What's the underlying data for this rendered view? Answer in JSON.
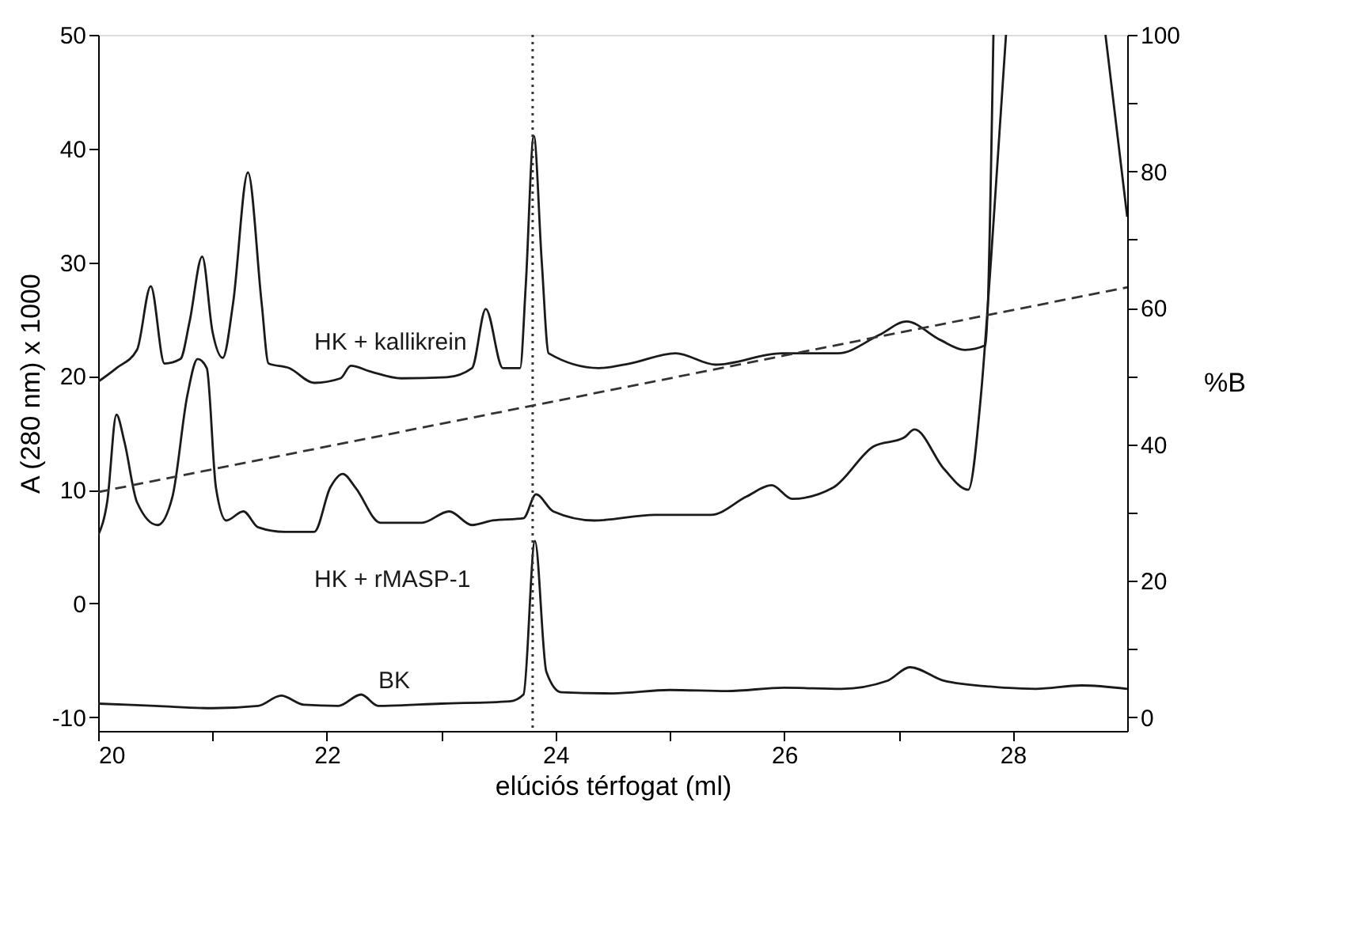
{
  "chart_data": {
    "type": "line",
    "xlabel": "elúciós térfogat (ml)",
    "ylabel": "A (280 nm) x 1000",
    "y2label": "%B",
    "xlim": [
      20,
      29
    ],
    "xticks": [
      20,
      {
        "value": 21,
        "label": null
      },
      22,
      {
        "value": 23,
        "label": null
      },
      24,
      {
        "value": 25,
        "label": null
      },
      26,
      {
        "value": 27,
        "label": null
      },
      28
    ],
    "ylim": [
      -11.2,
      50
    ],
    "yticks": [
      -10,
      0,
      10,
      20,
      30,
      40,
      50
    ],
    "y2lim": [
      -2,
      100
    ],
    "y2ticks": [
      0,
      {
        "value": 10,
        "label": null
      },
      20,
      {
        "value": 30,
        "label": null
      },
      40,
      {
        "value": 50,
        "label": null
      },
      60,
      {
        "value": 70,
        "label": null
      },
      80,
      {
        "value": 90,
        "label": null
      },
      100
    ],
    "grid": false,
    "legend": false,
    "marker": "none",
    "line_style": "solid",
    "ref_lines": [
      {
        "axis": "x",
        "value": 23.8,
        "line_style": "dotted",
        "color": "#333333"
      }
    ],
    "series": [
      {
        "name": "HK + kallikrein",
        "color": "#1a1a1a",
        "x": [
          20.0,
          20.16,
          20.34,
          20.46,
          20.58,
          20.72,
          20.8,
          20.91,
          21.0,
          21.09,
          21.18,
          21.31,
          21.43,
          21.49,
          21.67,
          21.89,
          22.12,
          22.21,
          22.38,
          22.65,
          23.05,
          23.27,
          23.39,
          23.54,
          23.69,
          23.74,
          23.81,
          23.88,
          23.94,
          24.38,
          24.65,
          25.05,
          25.4,
          25.98,
          26.47,
          26.83,
          27.07,
          27.36,
          27.58,
          27.76,
          27.83,
          28.3,
          28.81,
          29.0
        ],
        "values": [
          19.5,
          20.7,
          22.3,
          27.9,
          21.1,
          21.5,
          24.8,
          30.5,
          23.9,
          21.6,
          26.4,
          37.9,
          26.4,
          21.1,
          20.7,
          19.4,
          19.8,
          20.9,
          20.4,
          19.8,
          19.9,
          20.7,
          25.9,
          20.7,
          20.7,
          28,
          41.1,
          30,
          22.0,
          20.7,
          21.1,
          22.0,
          21.0,
          22.0,
          22.0,
          23.6,
          24.8,
          23.2,
          22.3,
          22.7,
          50,
          null,
          50,
          34
        ]
      },
      {
        "name": "HK + rMASP-1",
        "color": "#1a1a1a",
        "x": [
          20.0,
          20.08,
          20.16,
          20.23,
          20.34,
          20.52,
          20.65,
          20.78,
          20.87,
          20.95,
          21.03,
          21.12,
          21.27,
          21.4,
          21.63,
          21.89,
          22.03,
          22.14,
          22.25,
          22.47,
          22.83,
          23.07,
          23.27,
          23.45,
          23.72,
          23.83,
          23.98,
          24.34,
          24.87,
          25.36,
          25.67,
          25.89,
          26.07,
          26.43,
          26.78,
          27.05,
          27.14,
          27.4,
          27.61,
          27.72,
          27.81,
          27.94
        ],
        "values": [
          6.0,
          9.0,
          16.6,
          14.2,
          8.9,
          6.9,
          9.4,
          18.3,
          21.5,
          20.7,
          10.2,
          7.3,
          8.1,
          6.7,
          6.3,
          6.3,
          10.2,
          11.4,
          10.2,
          7.1,
          7.1,
          8.1,
          6.9,
          7.3,
          7.5,
          9.6,
          8.1,
          7.3,
          7.8,
          7.8,
          9.4,
          10.4,
          9.2,
          10.2,
          13.8,
          14.6,
          15.3,
          11.8,
          10.0,
          18.2,
          30.4,
          50
        ]
      },
      {
        "name": "BK",
        "color": "#1a1a1a",
        "x": [
          20.0,
          20.5,
          21.0,
          21.4,
          21.6,
          21.8,
          22.1,
          22.3,
          22.45,
          23.0,
          23.6,
          23.72,
          23.82,
          23.92,
          24.05,
          24.5,
          25.0,
          25.5,
          26.0,
          26.5,
          26.9,
          27.1,
          27.4,
          27.8,
          28.2,
          28.6,
          29.0
        ],
        "values": [
          -8.8,
          -9.0,
          -9.2,
          -9.0,
          -8.1,
          -8.9,
          -9.0,
          -8.0,
          -9.0,
          -8.8,
          -8.6,
          -8.0,
          5.5,
          -6.0,
          -7.8,
          -7.9,
          -7.6,
          -7.7,
          -7.4,
          -7.5,
          -6.8,
          -5.6,
          -6.8,
          -7.3,
          -7.5,
          -7.2,
          -7.5
        ]
      },
      {
        "color": "#333333",
        "axis": "y2",
        "line_style": "dashed",
        "x": [
          20,
          29
        ],
        "values": [
          33,
          63
        ]
      }
    ]
  }
}
